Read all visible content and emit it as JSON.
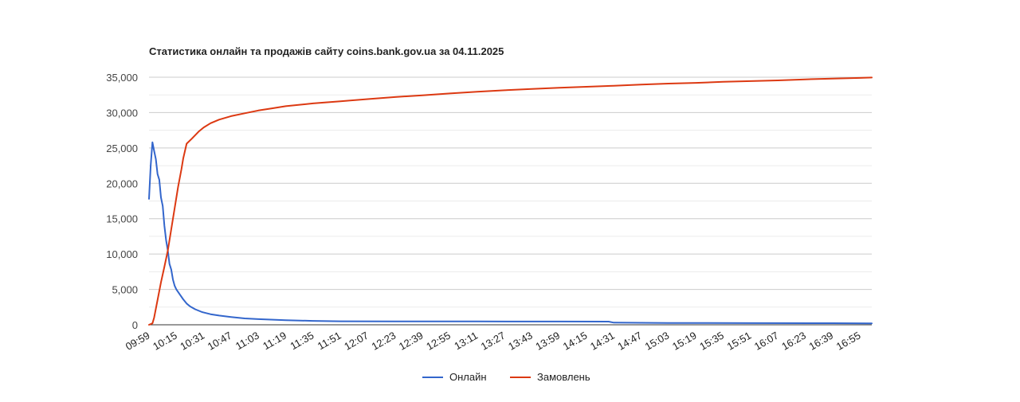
{
  "chart_data": {
    "type": "line",
    "title": "Статистика онлайн та продажів сайту coins.bank.gov.ua за 04.11.2025",
    "xlabel": "",
    "ylabel": "",
    "ylim": [
      0,
      35000
    ],
    "yticks": [
      0,
      5000,
      10000,
      15000,
      20000,
      25000,
      30000,
      35000
    ],
    "ytick_labels": [
      "0",
      "5,000",
      "10,000",
      "15,000",
      "20,000",
      "25,000",
      "30,000",
      "35,000"
    ],
    "xtick_labels": [
      "09:59",
      "10:15",
      "10:31",
      "10:47",
      "11:03",
      "11:19",
      "11:35",
      "11:51",
      "12:07",
      "12:23",
      "12:39",
      "12:55",
      "13:11",
      "13:27",
      "13:43",
      "13:59",
      "14:15",
      "14:31",
      "14:47",
      "15:03",
      "15:19",
      "15:35",
      "15:51",
      "16:07",
      "16:23",
      "16:39",
      "16:55"
    ],
    "xlim": [
      "09:59",
      "17:02"
    ],
    "grid": true,
    "legend_position": "bottom",
    "series": [
      {
        "name": "Онлайн",
        "color": "#3366cc",
        "points": [
          [
            "09:59",
            17800
          ],
          [
            "10:00",
            22500
          ],
          [
            "10:01",
            25800
          ],
          [
            "10:02",
            24600
          ],
          [
            "10:03",
            23400
          ],
          [
            "10:04",
            21300
          ],
          [
            "10:05",
            20500
          ],
          [
            "10:06",
            18000
          ],
          [
            "10:07",
            16800
          ],
          [
            "10:08",
            14000
          ],
          [
            "10:09",
            12000
          ],
          [
            "10:10",
            10500
          ],
          [
            "10:11",
            8600
          ],
          [
            "10:12",
            7800
          ],
          [
            "10:13",
            6400
          ],
          [
            "10:14",
            5500
          ],
          [
            "10:15",
            5000
          ],
          [
            "10:17",
            4300
          ],
          [
            "10:19",
            3600
          ],
          [
            "10:21",
            3000
          ],
          [
            "10:23",
            2600
          ],
          [
            "10:26",
            2200
          ],
          [
            "10:30",
            1800
          ],
          [
            "10:35",
            1500
          ],
          [
            "10:40",
            1300
          ],
          [
            "10:47",
            1100
          ],
          [
            "10:55",
            900
          ],
          [
            "11:03",
            800
          ],
          [
            "11:19",
            650
          ],
          [
            "11:35",
            550
          ],
          [
            "11:51",
            500
          ],
          [
            "12:23",
            480
          ],
          [
            "13:11",
            470
          ],
          [
            "13:59",
            460
          ],
          [
            "14:28",
            450
          ],
          [
            "14:31",
            300
          ],
          [
            "15:03",
            260
          ],
          [
            "15:51",
            240
          ],
          [
            "16:39",
            220
          ],
          [
            "17:02",
            200
          ]
        ]
      },
      {
        "name": "Замовлень",
        "color": "#dc3912",
        "points": [
          [
            "09:59",
            0
          ],
          [
            "10:01",
            200
          ],
          [
            "10:02",
            1000
          ],
          [
            "10:04",
            3500
          ],
          [
            "10:06",
            6000
          ],
          [
            "10:08",
            8200
          ],
          [
            "10:10",
            10500
          ],
          [
            "10:12",
            13500
          ],
          [
            "10:14",
            16500
          ],
          [
            "10:16",
            19500
          ],
          [
            "10:18",
            22000
          ],
          [
            "10:19",
            23500
          ],
          [
            "10:21",
            25600
          ],
          [
            "10:24",
            26300
          ],
          [
            "10:28",
            27300
          ],
          [
            "10:31",
            27900
          ],
          [
            "10:35",
            28500
          ],
          [
            "10:40",
            29000
          ],
          [
            "10:47",
            29500
          ],
          [
            "10:55",
            29900
          ],
          [
            "11:03",
            30300
          ],
          [
            "11:11",
            30600
          ],
          [
            "11:19",
            30900
          ],
          [
            "11:35",
            31300
          ],
          [
            "11:51",
            31600
          ],
          [
            "12:07",
            31900
          ],
          [
            "12:23",
            32200
          ],
          [
            "12:39",
            32450
          ],
          [
            "12:55",
            32700
          ],
          [
            "13:11",
            32950
          ],
          [
            "13:27",
            33150
          ],
          [
            "13:43",
            33350
          ],
          [
            "13:59",
            33500
          ],
          [
            "14:15",
            33650
          ],
          [
            "14:31",
            33800
          ],
          [
            "14:47",
            33950
          ],
          [
            "15:03",
            34100
          ],
          [
            "15:19",
            34200
          ],
          [
            "15:35",
            34350
          ],
          [
            "15:51",
            34450
          ],
          [
            "16:07",
            34550
          ],
          [
            "16:23",
            34700
          ],
          [
            "16:39",
            34800
          ],
          [
            "16:55",
            34900
          ],
          [
            "17:02",
            34950
          ]
        ]
      }
    ]
  }
}
